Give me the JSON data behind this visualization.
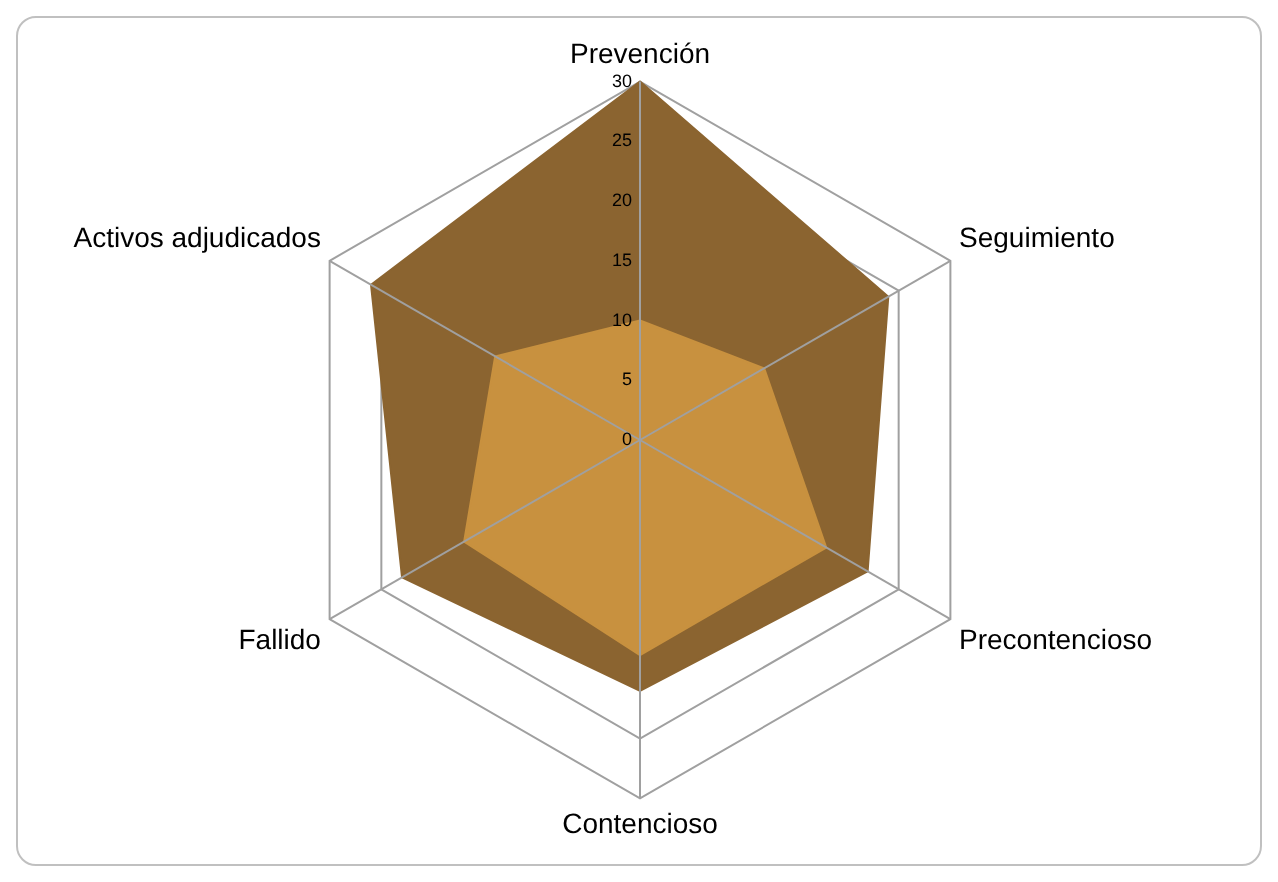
{
  "chart_data": {
    "type": "radar",
    "categories": [
      "Prevención",
      "Seguimiento",
      "Precontencioso",
      "Contencioso",
      "Fallido",
      "Activos adjudicados"
    ],
    "series": [
      {
        "color": "#8b6430",
        "values": [
          30,
          24,
          22,
          21,
          23,
          26
        ]
      },
      {
        "color": "#c8913f",
        "values": [
          10,
          12,
          18,
          18,
          17,
          14
        ]
      }
    ],
    "ylim": [
      0,
      30
    ],
    "yticks": [
      0,
      5,
      10,
      15,
      20,
      25,
      30
    ],
    "grid": true,
    "legend": false
  }
}
